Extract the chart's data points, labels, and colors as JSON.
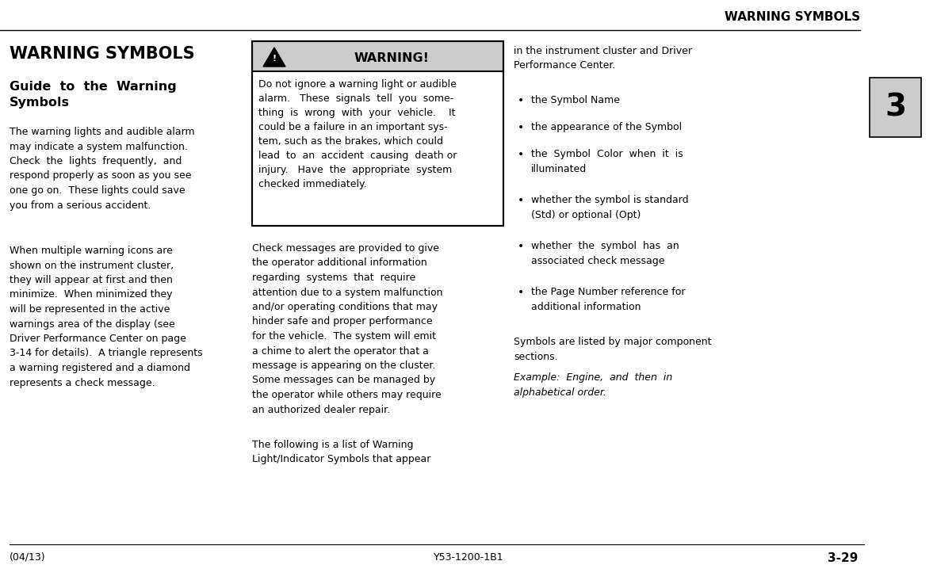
{
  "page_title_top": "WARNING SYMBOLS",
  "section_title": "WARNING SYMBOLS",
  "section_subtitle_line1": "Guide  to  the  Warning",
  "section_subtitle_line2": "Symbols",
  "col1_body1": "The warning lights and audible alarm\nmay indicate a system malfunction.\nCheck  the  lights  frequently,  and\nrespond properly as soon as you see\none go on.  These lights could save\nyou from a serious accident.",
  "col1_body2": "When multiple warning icons are\nshown on the instrument cluster,\nthey will appear at first and then\nminimize.  When minimized they\nwill be represented in the active\nwarnings area of the display (see\nDriver Performance Center on page\n3-14 for details).  A triangle represents\na warning registered and a diamond\nrepresents a check message.",
  "warning_box_title": "WARNING!",
  "warning_box_body": "Do not ignore a warning light or audible\nalarm.   These  signals  tell  you  some-\nthing  is  wrong  with  your  vehicle.    It\ncould be a failure in an important sys-\ntem, such as the brakes, which could\nlead  to  an  accident  causing  death or\ninjury.   Have  the  appropriate  system\nchecked immediately.",
  "col2_body1": "Check messages are provided to give\nthe operator additional information\nregarding  systems  that  require\nattention due to a system malfunction\nand/or operating conditions that may\nhinder safe and proper performance\nfor the vehicle.  The system will emit\na chime to alert the operator that a\nmessage is appearing on the cluster.\nSome messages can be managed by\nthe operator while others may require\nan authorized dealer repair.",
  "col2_body2": "The following is a list of Warning\nLight/Indicator Symbols that appear",
  "col3_body1": "in the instrument cluster and Driver\nPerformance Center.",
  "bullet_items": [
    "the Symbol Name",
    "the appearance of the Symbol",
    "the  Symbol  Color  when  it  is\nilluminated",
    "whether the symbol is standard\n(Std) or optional (Opt)",
    "whether  the  symbol  has  an\nassociated check message",
    "the Page Number reference for\nadditional information"
  ],
  "col3_footer1": "Symbols are listed by major component\nsections.",
  "col3_footer2": "Example:  Engine,  and  then  in\nalphabetical order.",
  "tab_label": "3",
  "footer_left": "(04/13)",
  "footer_center": "Y53-1200-1B1",
  "footer_right": "3-29",
  "bg_color": "#ffffff",
  "text_color": "#000000",
  "tab_bg": "#cccccc",
  "warning_box_bg": "#cccccc",
  "warning_box_border": "#000000"
}
